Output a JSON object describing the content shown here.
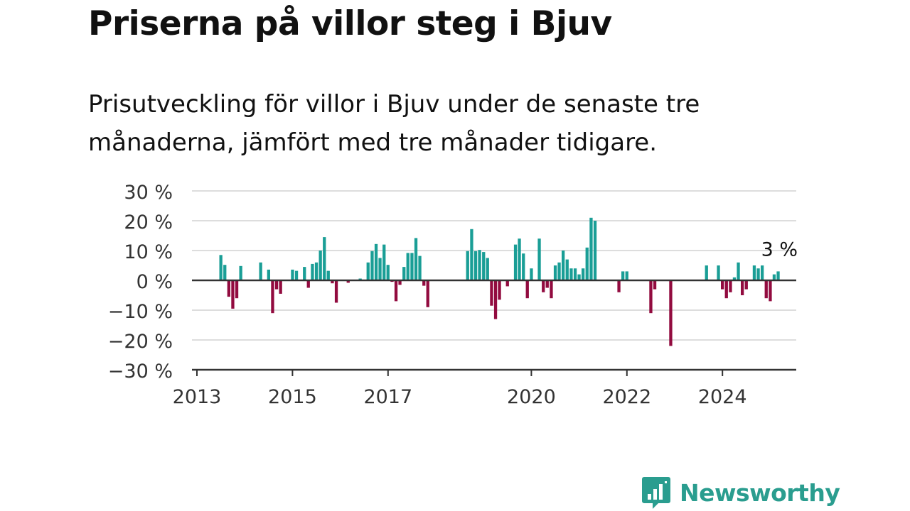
{
  "title": "Priserna på villor steg i Bjuv",
  "subtitle_lines": [
    "Prisutveckling för villor i Bjuv under de senaste tre",
    "månaderna, jämfört med tre månader tidigare."
  ],
  "brand": "Newsworthy",
  "colors": {
    "positive": "#1a9e96",
    "negative": "#920b3f",
    "grid": "#dddddd",
    "axis": "#333333"
  },
  "chart_data": {
    "type": "bar",
    "title": "Priserna på villor steg i Bjuv",
    "ylim": [
      -30,
      30
    ],
    "y_ticks": [
      30,
      20,
      10,
      0,
      -10,
      -20,
      -30
    ],
    "y_tick_labels": [
      "30 %",
      "20 %",
      "10 %",
      "0 %",
      "−10 %",
      "−20 %",
      "−30 %"
    ],
    "x_tick_labels": [
      "2013",
      "2015",
      "2017",
      "2020",
      "2022",
      "2024"
    ],
    "x_tick_dates": [
      "2013-01",
      "2015-01",
      "2017-01",
      "2020-01",
      "2022-01",
      "2024-01"
    ],
    "x_range": [
      "2013-01",
      "2025-06"
    ],
    "grid": true,
    "annotation": {
      "text": "3 %",
      "date": "2025-03",
      "value": 3
    },
    "series": [
      {
        "values": [
          [
            "2013-07",
            8.5
          ],
          [
            "2013-08",
            5.2
          ],
          [
            "2013-09",
            -5.5
          ],
          [
            "2013-10",
            -9.5
          ],
          [
            "2013-11",
            -6.0
          ],
          [
            "2013-12",
            4.8
          ],
          [
            "2014-05",
            6.0
          ],
          [
            "2014-07",
            3.6
          ],
          [
            "2014-08",
            -11.0
          ],
          [
            "2014-09",
            -3.0
          ],
          [
            "2014-10",
            -4.5
          ],
          [
            "2015-01",
            3.6
          ],
          [
            "2015-02",
            3.2
          ],
          [
            "2015-04",
            4.5
          ],
          [
            "2015-05",
            -2.5
          ],
          [
            "2015-06",
            5.5
          ],
          [
            "2015-07",
            6.0
          ],
          [
            "2015-08",
            10.0
          ],
          [
            "2015-09",
            14.5
          ],
          [
            "2015-10",
            3.2
          ],
          [
            "2015-11",
            -1.0
          ],
          [
            "2015-12",
            -7.5
          ],
          [
            "2016-03",
            -0.8
          ],
          [
            "2016-06",
            0.6
          ],
          [
            "2016-08",
            6.0
          ],
          [
            "2016-09",
            9.8
          ],
          [
            "2016-10",
            12.2
          ],
          [
            "2016-11",
            7.5
          ],
          [
            "2016-12",
            12.0
          ],
          [
            "2017-01",
            5.2
          ],
          [
            "2017-02",
            -0.5
          ],
          [
            "2017-03",
            -7.0
          ],
          [
            "2017-04",
            -1.5
          ],
          [
            "2017-05",
            4.5
          ],
          [
            "2017-06",
            9.2
          ],
          [
            "2017-07",
            9.2
          ],
          [
            "2017-08",
            14.2
          ],
          [
            "2017-09",
            8.2
          ],
          [
            "2017-10",
            -1.8
          ],
          [
            "2017-11",
            -9.0
          ],
          [
            "2018-09",
            9.8
          ],
          [
            "2018-10",
            17.2
          ],
          [
            "2018-11",
            9.8
          ],
          [
            "2018-12",
            10.2
          ],
          [
            "2019-01",
            9.5
          ],
          [
            "2019-02",
            7.5
          ],
          [
            "2019-03",
            -8.5
          ],
          [
            "2019-04",
            -13.0
          ],
          [
            "2019-05",
            -6.5
          ],
          [
            "2019-07",
            -2.0
          ],
          [
            "2019-09",
            12.0
          ],
          [
            "2019-10",
            14.0
          ],
          [
            "2019-11",
            9.0
          ],
          [
            "2019-12",
            -6.0
          ],
          [
            "2020-01",
            4.0
          ],
          [
            "2020-03",
            14.0
          ],
          [
            "2020-04",
            -4.0
          ],
          [
            "2020-05",
            -2.5
          ],
          [
            "2020-06",
            -6.0
          ],
          [
            "2020-07",
            5.0
          ],
          [
            "2020-08",
            6.0
          ],
          [
            "2020-09",
            10.0
          ],
          [
            "2020-10",
            7.0
          ],
          [
            "2020-11",
            4.0
          ],
          [
            "2020-12",
            4.0
          ],
          [
            "2021-01",
            2.0
          ],
          [
            "2021-02",
            4.0
          ],
          [
            "2021-03",
            11.0
          ],
          [
            "2021-04",
            21.0
          ],
          [
            "2021-05",
            20.0
          ],
          [
            "2021-11",
            -4.0
          ],
          [
            "2021-12",
            3.0
          ],
          [
            "2022-01",
            3.0
          ],
          [
            "2022-07",
            -11.0
          ],
          [
            "2022-08",
            -3.0
          ],
          [
            "2022-12",
            -22.0
          ],
          [
            "2023-09",
            5.0
          ],
          [
            "2023-12",
            5.0
          ],
          [
            "2024-01",
            -3.0
          ],
          [
            "2024-02",
            -6.0
          ],
          [
            "2024-03",
            -4.0
          ],
          [
            "2024-04",
            1.0
          ],
          [
            "2024-05",
            6.0
          ],
          [
            "2024-06",
            -5.0
          ],
          [
            "2024-07",
            -3.0
          ],
          [
            "2024-09",
            5.0
          ],
          [
            "2024-10",
            4.0
          ],
          [
            "2024-11",
            5.0
          ],
          [
            "2024-12",
            -6.0
          ],
          [
            "2025-01",
            -7.0
          ],
          [
            "2025-02",
            2.0
          ],
          [
            "2025-03",
            3.0
          ]
        ]
      }
    ]
  }
}
